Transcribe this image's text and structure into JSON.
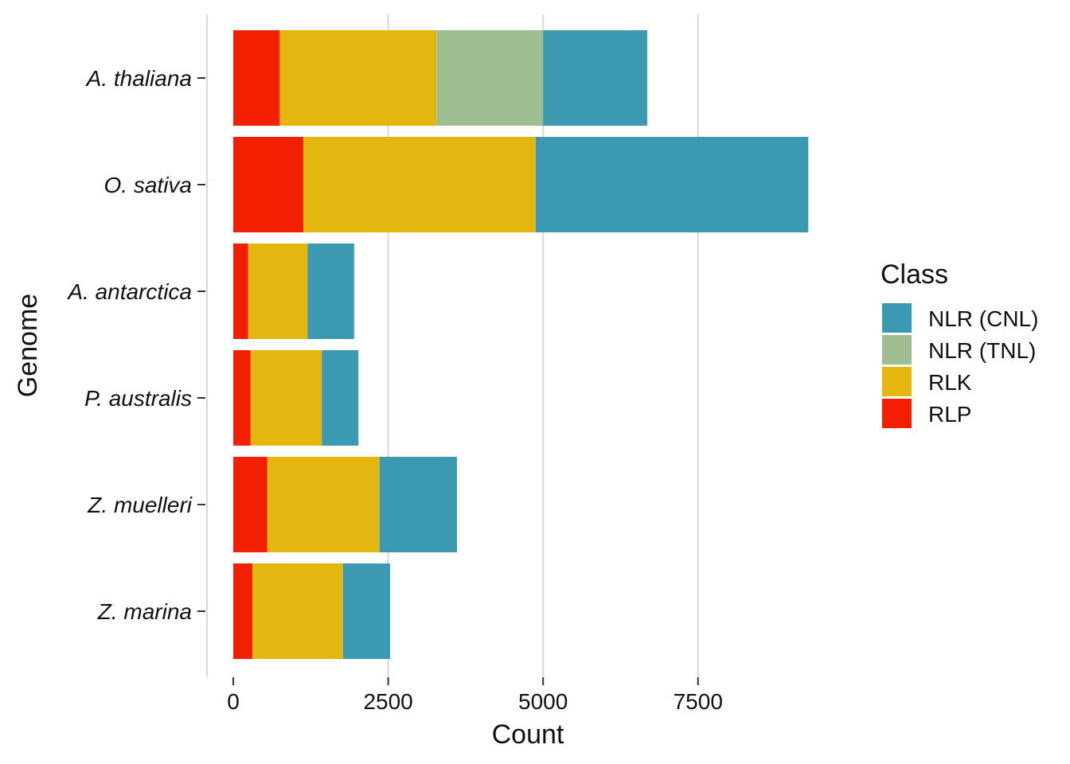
{
  "chart_data": {
    "type": "bar",
    "orientation": "horizontal",
    "stacked": true,
    "categories": [
      "A. thaliana",
      "O. sativa",
      "A. antarctica",
      "P. australis",
      "Z. muelleri",
      "Z. marina"
    ],
    "series": [
      {
        "name": "RLP",
        "color": "#f21f00",
        "values": [
          750,
          1130,
          240,
          280,
          550,
          310
        ]
      },
      {
        "name": "RLK",
        "color": "#e3b710",
        "values": [
          2530,
          3750,
          960,
          1150,
          1810,
          1460
        ]
      },
      {
        "name": "NLR (TNL)",
        "color": "#9ebe91",
        "values": [
          1720,
          0,
          0,
          0,
          0,
          0
        ]
      },
      {
        "name": "NLR (CNL)",
        "color": "#3b99b1",
        "values": [
          1680,
          4400,
          750,
          590,
          1250,
          760
        ]
      }
    ],
    "xlabel": "Count",
    "ylabel": "Genome",
    "xticks": [
      0,
      2500,
      5000,
      7500
    ],
    "xlim": [
      -450,
      9700
    ],
    "grid": "vertical-major",
    "legend": {
      "title": "Class",
      "position": "right",
      "entries": [
        "NLR (CNL)",
        "NLR (TNL)",
        "RLK",
        "RLP"
      ]
    }
  }
}
